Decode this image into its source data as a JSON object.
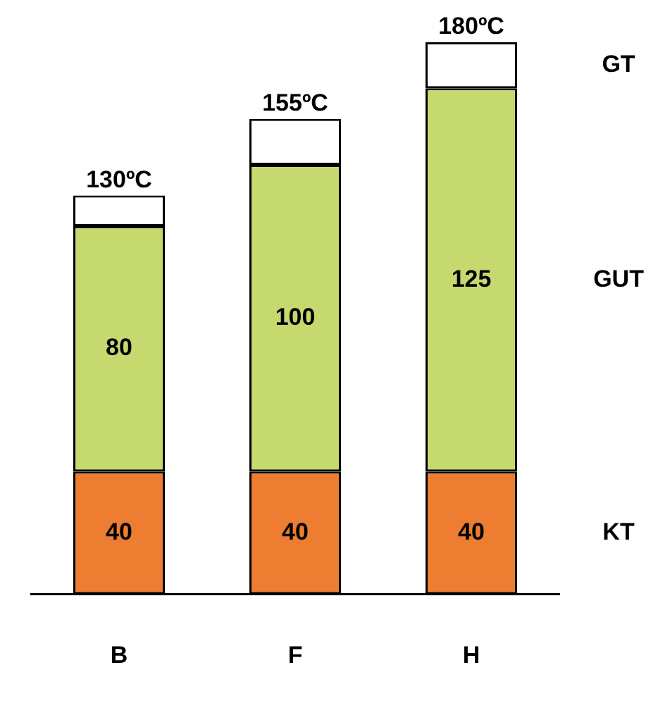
{
  "chart_data": {
    "type": "bar",
    "stacked": true,
    "legend": false,
    "grid": false,
    "categories": [
      "B",
      "F",
      "H"
    ],
    "series": [
      {
        "name": "KT",
        "color": "#ed7d31",
        "values": [
          40,
          40,
          40
        ],
        "value_labels": [
          "40",
          "40",
          "40"
        ]
      },
      {
        "name": "GUT",
        "color": "#c5d96f",
        "values": [
          80,
          100,
          125
        ],
        "value_labels": [
          "80",
          "100",
          "125"
        ]
      },
      {
        "name": "GT",
        "color": "#ffffff",
        "values": [
          10,
          15,
          15
        ]
      }
    ],
    "totals": [
      "130ºC",
      "155ºC",
      "180ºC"
    ]
  }
}
